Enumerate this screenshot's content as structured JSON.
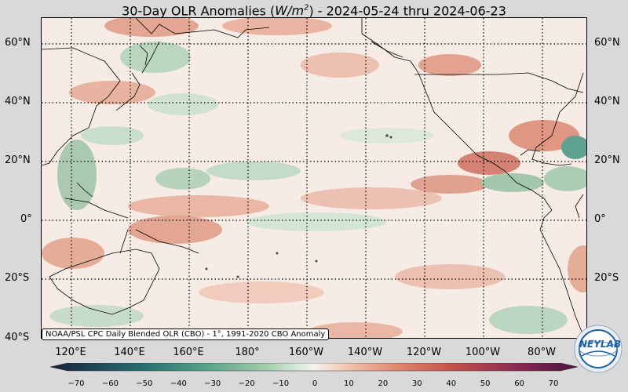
{
  "title": {
    "prefix": "30-Day OLR Anomalies (",
    "unit_base": "W/m",
    "unit_exp": "2",
    "suffix": ") - 2024-05-24 thru 2024-06-23"
  },
  "lat_labels": [
    "60°N",
    "40°N",
    "20°N",
    "0°",
    "20°S",
    "40°S"
  ],
  "lon_labels": [
    "120°E",
    "140°E",
    "160°E",
    "180°",
    "160°W",
    "140°W",
    "120°W",
    "100°W",
    "80°W"
  ],
  "attribution": "NOAA/PSL CPC Daily Blended OLR (CBO) - 1°, 1991-2020 CBO Anomaly",
  "colorbar": {
    "ticks": [
      "−70",
      "−60",
      "−50",
      "−40",
      "−30",
      "−20",
      "−10",
      "0",
      "10",
      "20",
      "30",
      "40",
      "50",
      "60",
      "70"
    ],
    "min": -75,
    "max": 75,
    "colors": [
      "#1b1f3b",
      "#1f4e5f",
      "#2b7a73",
      "#5aa58a",
      "#9ccaa6",
      "#d7ead8",
      "#f7f3ef",
      "#f2c6b2",
      "#e0876a",
      "#c4524a",
      "#8e2a52",
      "#4a1340"
    ]
  },
  "logo": {
    "text": "NEYLAB"
  }
}
